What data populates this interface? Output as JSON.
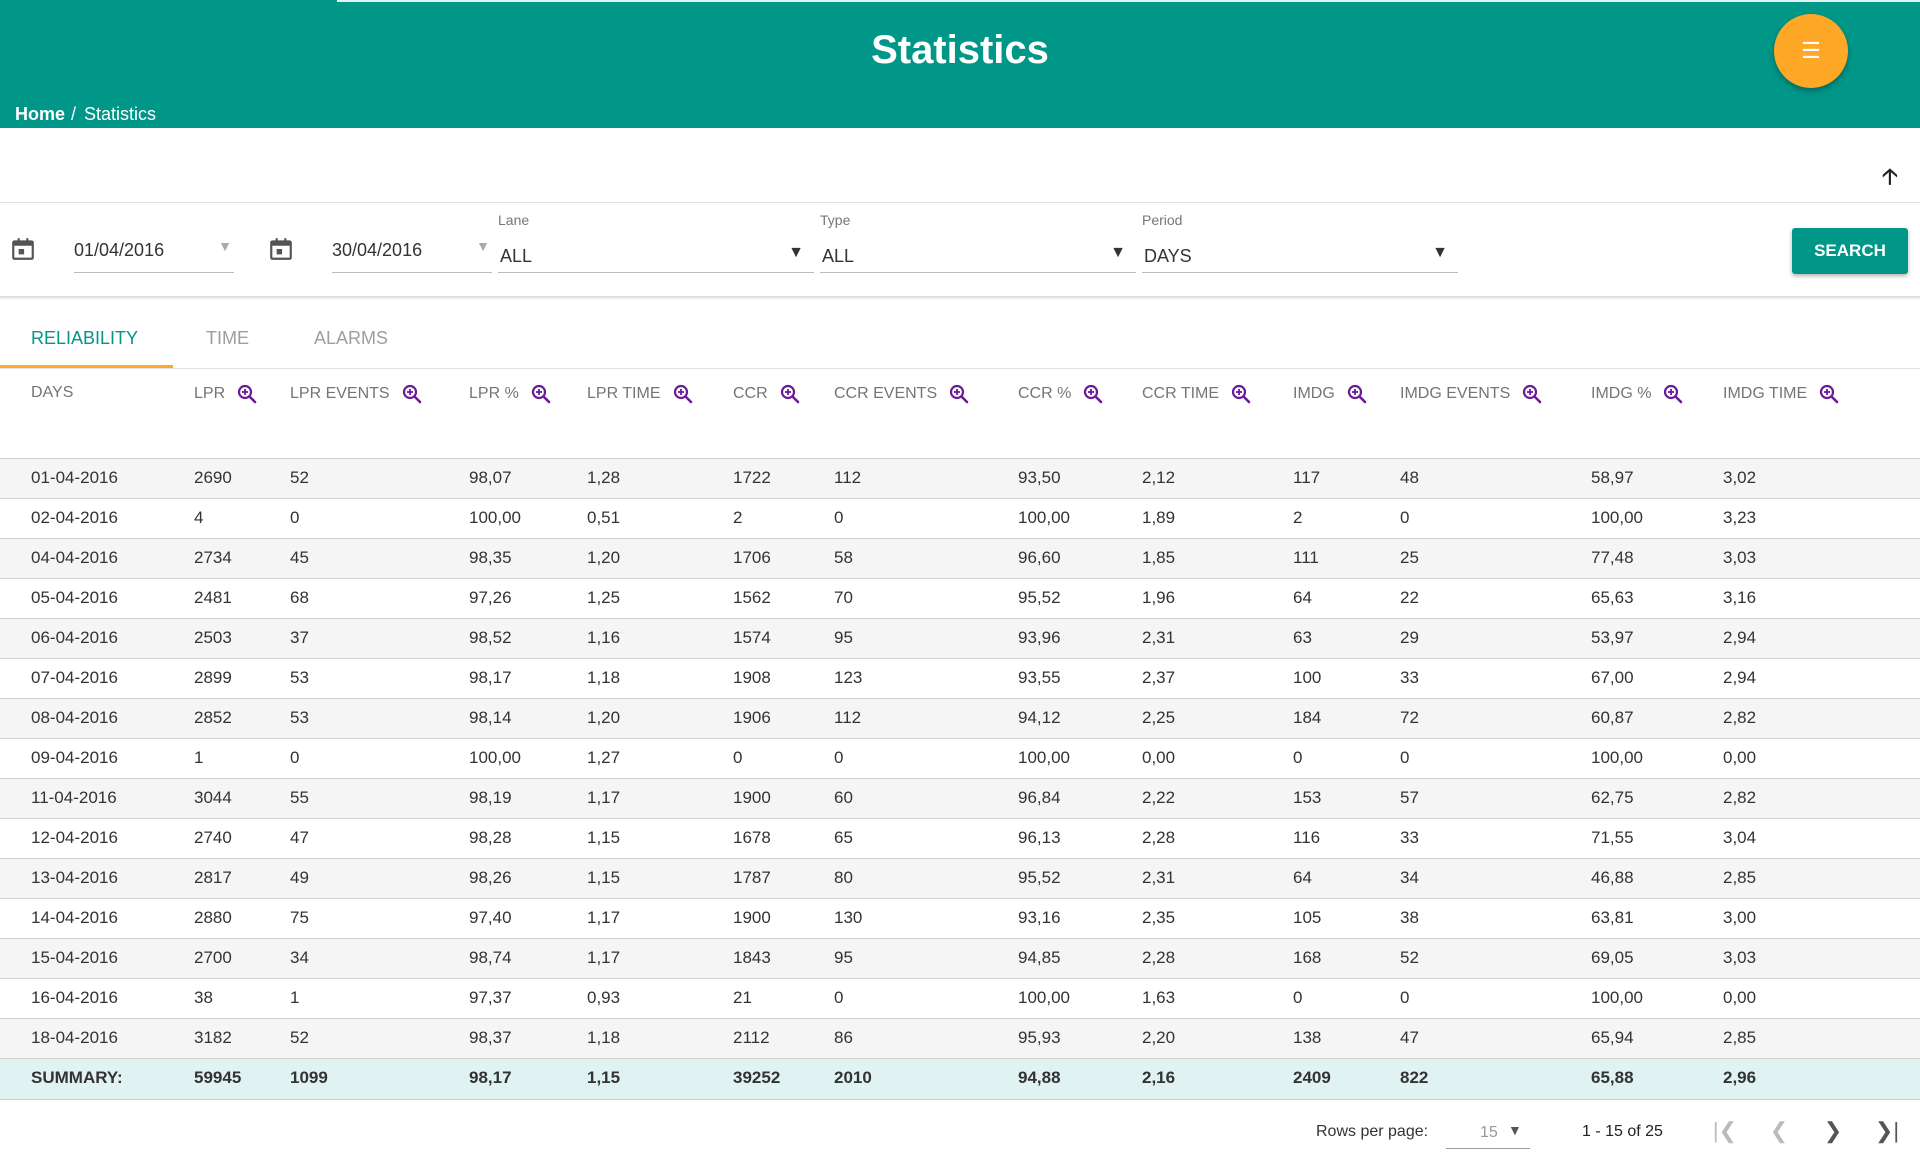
{
  "header": {
    "title": "Statistics",
    "menu_icon": "menu-icon"
  },
  "breadcrumb": {
    "home": "Home",
    "separator": "/",
    "current": "Statistics"
  },
  "filters": {
    "date_from": "01/04/2016",
    "date_to": "30/04/2016",
    "lane": {
      "label": "Lane",
      "value": "ALL"
    },
    "type": {
      "label": "Type",
      "value": "ALL"
    },
    "period": {
      "label": "Period",
      "value": "DAYS"
    },
    "search_label": "SEARCH"
  },
  "tabs": [
    "RELIABILITY",
    "TIME",
    "ALARMS"
  ],
  "active_tab": "RELIABILITY",
  "table": {
    "columns": [
      "DAYS",
      "LPR",
      "LPR EVENTS",
      "LPR %",
      "LPR TIME",
      "CCR",
      "CCR EVENTS",
      "CCR %",
      "CCR TIME",
      "IMDG",
      "IMDG EVENTS",
      "IMDG %",
      "IMDG TIME"
    ],
    "rows": [
      [
        "01-04-2016",
        "2690",
        "52",
        "98,07",
        "1,28",
        "1722",
        "112",
        "93,50",
        "2,12",
        "117",
        "48",
        "58,97",
        "3,02"
      ],
      [
        "02-04-2016",
        "4",
        "0",
        "100,00",
        "0,51",
        "2",
        "0",
        "100,00",
        "1,89",
        "2",
        "0",
        "100,00",
        "3,23"
      ],
      [
        "04-04-2016",
        "2734",
        "45",
        "98,35",
        "1,20",
        "1706",
        "58",
        "96,60",
        "1,85",
        "111",
        "25",
        "77,48",
        "3,03"
      ],
      [
        "05-04-2016",
        "2481",
        "68",
        "97,26",
        "1,25",
        "1562",
        "70",
        "95,52",
        "1,96",
        "64",
        "22",
        "65,63",
        "3,16"
      ],
      [
        "06-04-2016",
        "2503",
        "37",
        "98,52",
        "1,16",
        "1574",
        "95",
        "93,96",
        "2,31",
        "63",
        "29",
        "53,97",
        "2,94"
      ],
      [
        "07-04-2016",
        "2899",
        "53",
        "98,17",
        "1,18",
        "1908",
        "123",
        "93,55",
        "2,37",
        "100",
        "33",
        "67,00",
        "2,94"
      ],
      [
        "08-04-2016",
        "2852",
        "53",
        "98,14",
        "1,20",
        "1906",
        "112",
        "94,12",
        "2,25",
        "184",
        "72",
        "60,87",
        "2,82"
      ],
      [
        "09-04-2016",
        "1",
        "0",
        "100,00",
        "1,27",
        "0",
        "0",
        "100,00",
        "0,00",
        "0",
        "0",
        "100,00",
        "0,00"
      ],
      [
        "11-04-2016",
        "3044",
        "55",
        "98,19",
        "1,17",
        "1900",
        "60",
        "96,84",
        "2,22",
        "153",
        "57",
        "62,75",
        "2,82"
      ],
      [
        "12-04-2016",
        "2740",
        "47",
        "98,28",
        "1,15",
        "1678",
        "65",
        "96,13",
        "2,28",
        "116",
        "33",
        "71,55",
        "3,04"
      ],
      [
        "13-04-2016",
        "2817",
        "49",
        "98,26",
        "1,15",
        "1787",
        "80",
        "95,52",
        "2,31",
        "64",
        "34",
        "46,88",
        "2,85"
      ],
      [
        "14-04-2016",
        "2880",
        "75",
        "97,40",
        "1,17",
        "1900",
        "130",
        "93,16",
        "2,35",
        "105",
        "38",
        "63,81",
        "3,00"
      ],
      [
        "15-04-2016",
        "2700",
        "34",
        "98,74",
        "1,17",
        "1843",
        "95",
        "94,85",
        "2,28",
        "168",
        "52",
        "69,05",
        "3,03"
      ],
      [
        "16-04-2016",
        "38",
        "1",
        "97,37",
        "0,93",
        "21",
        "0",
        "100,00",
        "1,63",
        "0",
        "0",
        "100,00",
        "0,00"
      ],
      [
        "18-04-2016",
        "3182",
        "52",
        "98,37",
        "1,18",
        "2112",
        "86",
        "95,93",
        "2,20",
        "138",
        "47",
        "65,94",
        "2,85"
      ]
    ],
    "summary": [
      "SUMMARY:",
      "59945",
      "1099",
      "98,17",
      "1,15",
      "39252",
      "2010",
      "94,88",
      "2,16",
      "2409",
      "822",
      "65,88",
      "2,96"
    ]
  },
  "pagination": {
    "rows_per_page_label": "Rows per page:",
    "rows_per_page": "15",
    "range": "1 - 15 of 25"
  },
  "colors": {
    "primary": "#009688",
    "accent": "#ffa726",
    "zoom_icon": "#6a1b9a"
  }
}
